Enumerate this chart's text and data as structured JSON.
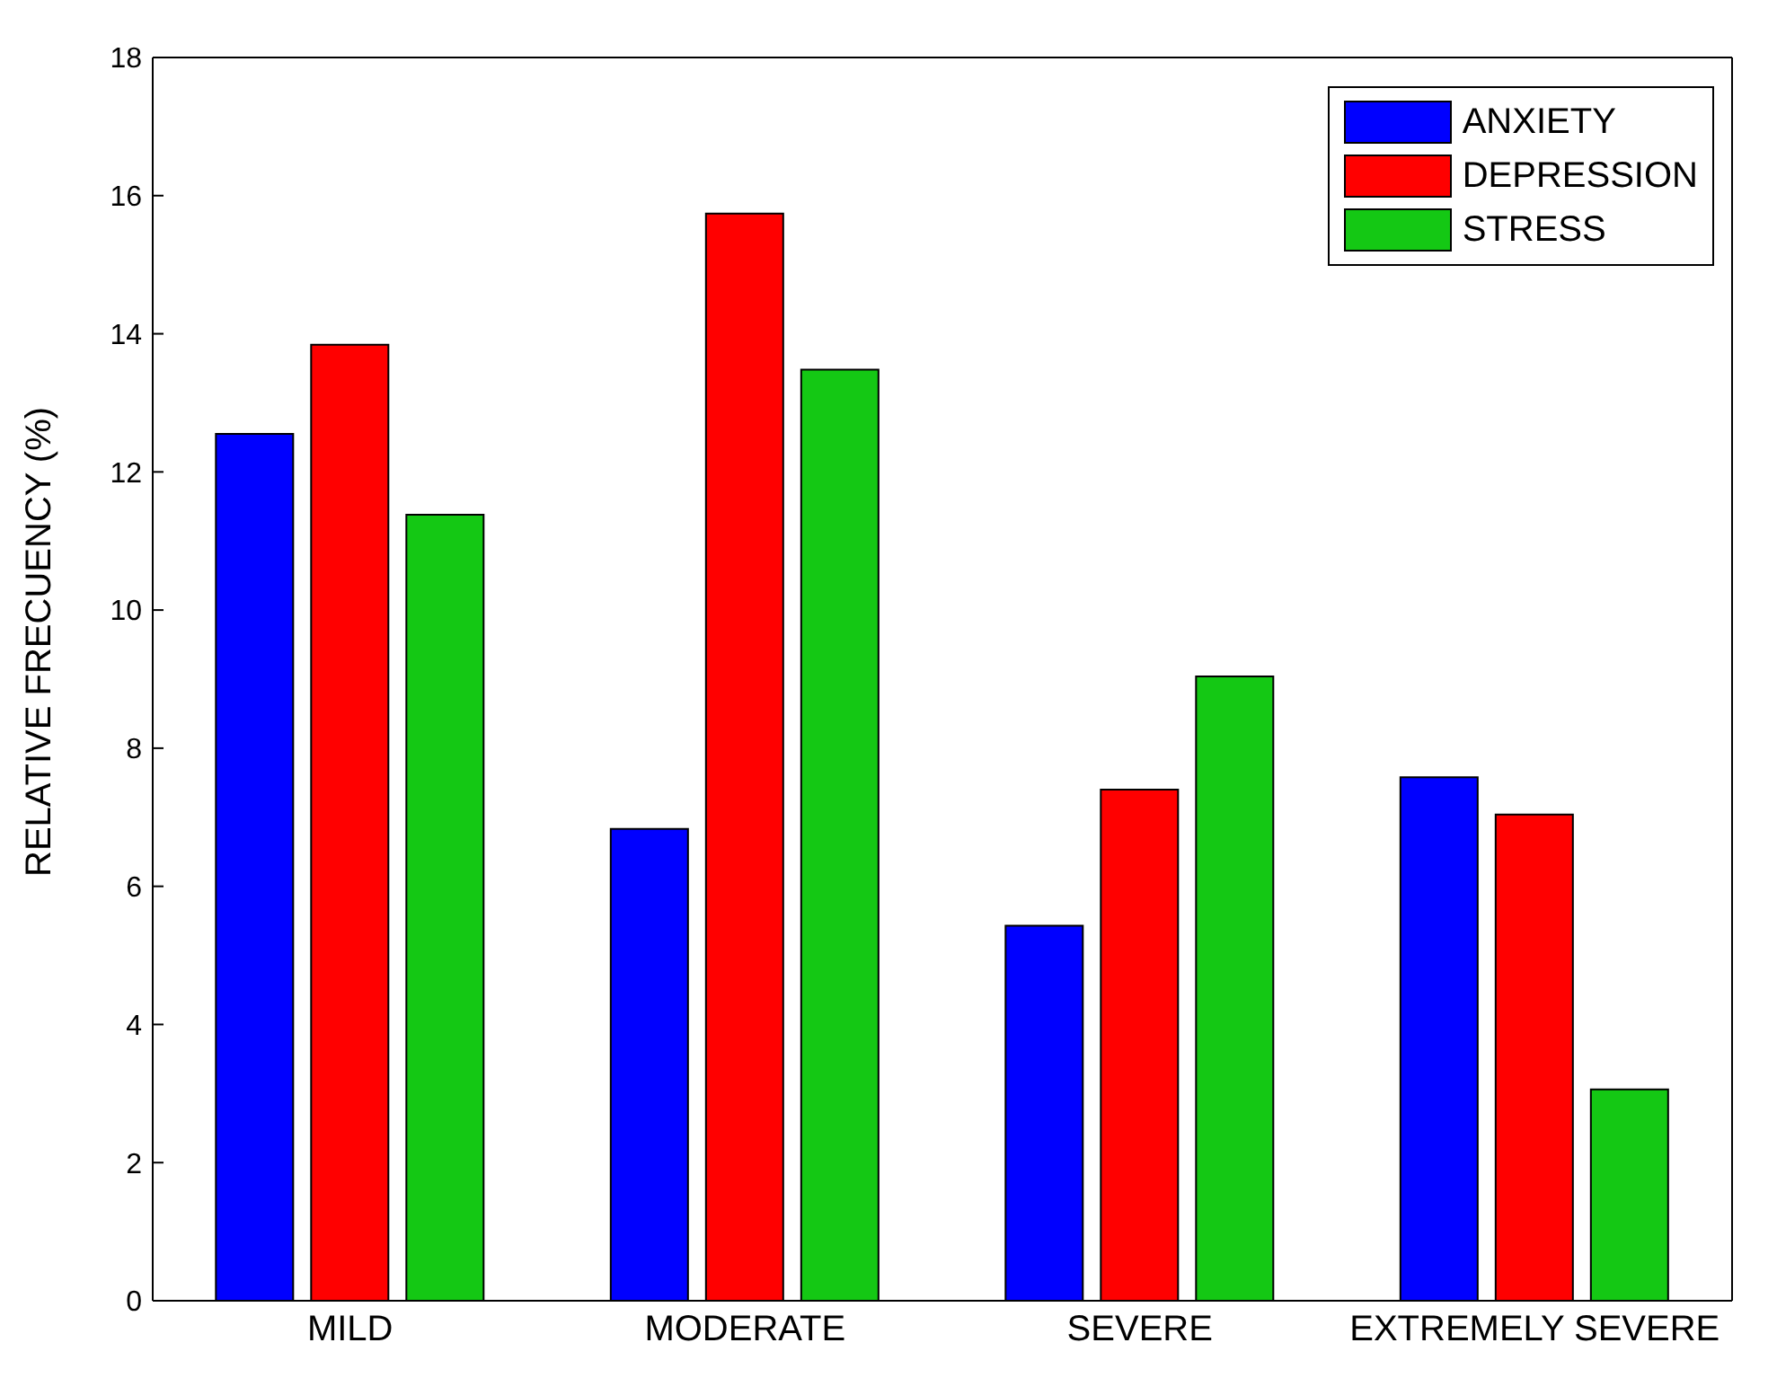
{
  "chart_data": {
    "type": "bar",
    "ylabel": "RELATIVE FRECUENCY (%)",
    "categories": [
      "MILD",
      "MODERATE",
      "SEVERE",
      "EXTREMELY SEVERE"
    ],
    "series": [
      {
        "name": "ANXIETY",
        "color": "#0000ff",
        "values": [
          12.55,
          6.83,
          5.43,
          7.58
        ]
      },
      {
        "name": "DEPRESSION",
        "color": "#ff0000",
        "values": [
          13.84,
          15.74,
          7.4,
          7.04
        ]
      },
      {
        "name": "STRESS",
        "color": "#14c814",
        "values": [
          11.38,
          13.48,
          9.04,
          3.06
        ]
      }
    ],
    "ylim": [
      0,
      18
    ],
    "yticks": [
      0,
      2,
      4,
      6,
      8,
      10,
      12,
      14,
      16,
      18
    ],
    "legend": "top right"
  }
}
